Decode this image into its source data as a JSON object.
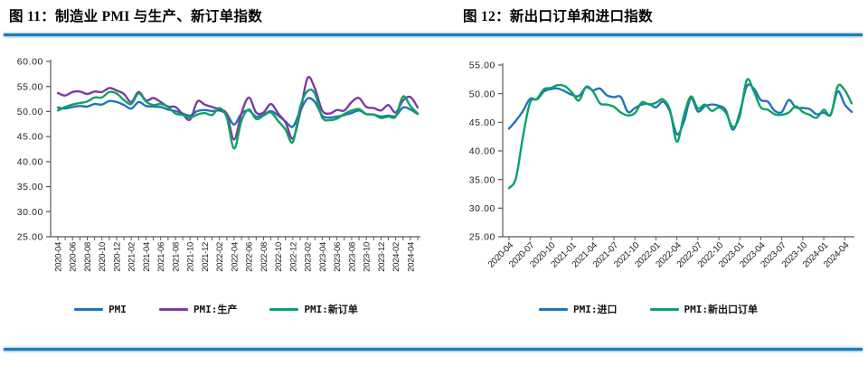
{
  "page": {
    "background": "#ffffff",
    "rule_color": "#1a7dc2"
  },
  "figures": [
    {
      "title": "图 11：制造业 PMI 与生产、新订单指数"
    },
    {
      "title": "图 12：新出口订单和进口指数"
    }
  ],
  "chart_data": [
    {
      "type": "line",
      "title": "图 11：制造业 PMI 与生产、新订单指数",
      "x": [
        "2020-04",
        "2020-05",
        "2020-06",
        "2020-07",
        "2020-08",
        "2020-09",
        "2020-10",
        "2020-11",
        "2020-12",
        "2021-01",
        "2021-02",
        "2021-03",
        "2021-04",
        "2021-05",
        "2021-06",
        "2021-07",
        "2021-08",
        "2021-09",
        "2021-10",
        "2021-11",
        "2021-12",
        "2022-01",
        "2022-02",
        "2022-03",
        "2022-04",
        "2022-05",
        "2022-06",
        "2022-07",
        "2022-08",
        "2022-09",
        "2022-10",
        "2022-11",
        "2022-12",
        "2023-01",
        "2023-02",
        "2023-03",
        "2023-04",
        "2023-05",
        "2023-06",
        "2023-07",
        "2023-08",
        "2023-09",
        "2023-10",
        "2023-11",
        "2023-12",
        "2024-01",
        "2024-02",
        "2024-03",
        "2024-04",
        "2024-05"
      ],
      "series": [
        {
          "name": "PMI",
          "color": "#2274b9",
          "values": [
            50.8,
            50.6,
            50.9,
            51.1,
            51.0,
            51.5,
            51.4,
            52.1,
            51.9,
            51.3,
            50.6,
            51.9,
            51.1,
            51.0,
            50.9,
            50.4,
            50.1,
            49.6,
            49.2,
            50.1,
            50.3,
            50.1,
            50.2,
            49.5,
            47.4,
            49.6,
            50.2,
            49.0,
            49.4,
            50.1,
            49.2,
            48.0,
            47.0,
            50.1,
            52.6,
            51.9,
            49.2,
            48.8,
            49.0,
            49.3,
            49.7,
            50.2,
            49.5,
            49.4,
            49.0,
            49.2,
            49.1,
            50.8,
            50.4,
            49.5
          ]
        },
        {
          "name": "PMI:生产",
          "color": "#7c3ba3",
          "values": [
            53.7,
            53.2,
            53.9,
            54.0,
            53.5,
            54.0,
            53.9,
            54.7,
            54.2,
            53.5,
            51.9,
            53.9,
            52.2,
            52.7,
            51.9,
            51.0,
            50.9,
            49.5,
            48.4,
            52.0,
            51.4,
            50.9,
            50.4,
            49.5,
            44.4,
            49.7,
            52.8,
            49.8,
            49.8,
            51.5,
            49.6,
            47.8,
            44.6,
            49.8,
            56.7,
            54.6,
            50.2,
            49.6,
            50.3,
            50.2,
            51.9,
            52.7,
            50.9,
            50.7,
            50.2,
            51.3,
            49.8,
            52.2,
            52.9,
            50.8
          ]
        },
        {
          "name": "PMI:新订单",
          "color": "#0ba364",
          "values": [
            50.2,
            50.9,
            51.4,
            51.7,
            52.0,
            52.8,
            52.8,
            53.9,
            53.6,
            52.3,
            51.5,
            53.6,
            52.0,
            51.3,
            51.5,
            50.9,
            49.6,
            49.3,
            48.8,
            49.4,
            49.7,
            49.3,
            50.7,
            48.8,
            42.6,
            48.2,
            50.4,
            48.5,
            49.2,
            49.8,
            48.1,
            46.4,
            43.9,
            50.9,
            54.1,
            53.6,
            48.8,
            48.3,
            48.6,
            49.5,
            50.2,
            50.5,
            49.5,
            49.4,
            48.7,
            49.0,
            49.0,
            53.0,
            51.1,
            49.6
          ]
        }
      ],
      "ylim": [
        25,
        60
      ],
      "ytick_labels": [
        "25.00",
        "30.00",
        "35.00",
        "40.00",
        "45.00",
        "50.00",
        "55.00",
        "60.00"
      ],
      "xtick_label_every": 2,
      "xtick_rotation": -90,
      "grid": false,
      "legend_position": "bottom"
    },
    {
      "type": "line",
      "title": "图 12：新出口订单和进口指数",
      "x": [
        "2020-04",
        "2020-05",
        "2020-06",
        "2020-07",
        "2020-08",
        "2020-09",
        "2020-10",
        "2020-11",
        "2020-12",
        "2021-01",
        "2021-02",
        "2021-03",
        "2021-04",
        "2021-05",
        "2021-06",
        "2021-07",
        "2021-08",
        "2021-09",
        "2021-10",
        "2021-11",
        "2021-12",
        "2022-01",
        "2022-02",
        "2022-03",
        "2022-04",
        "2022-05",
        "2022-06",
        "2022-07",
        "2022-08",
        "2022-09",
        "2022-10",
        "2022-11",
        "2022-12",
        "2023-01",
        "2023-02",
        "2023-03",
        "2023-04",
        "2023-05",
        "2023-06",
        "2023-07",
        "2023-08",
        "2023-09",
        "2023-10",
        "2023-11",
        "2023-12",
        "2024-01",
        "2024-02",
        "2024-03",
        "2024-04",
        "2024-05"
      ],
      "series": [
        {
          "name": "PMI:进口",
          "color": "#2274b9",
          "values": [
            43.9,
            45.3,
            47.0,
            49.1,
            49.0,
            50.4,
            50.8,
            50.9,
            50.4,
            49.8,
            49.6,
            51.1,
            50.6,
            50.9,
            49.7,
            49.4,
            49.4,
            46.8,
            47.5,
            48.1,
            48.2,
            47.6,
            48.6,
            46.9,
            42.9,
            45.1,
            49.2,
            46.9,
            47.8,
            48.1,
            47.9,
            47.1,
            43.7,
            46.7,
            51.3,
            50.9,
            48.9,
            48.6,
            47.0,
            46.8,
            48.9,
            47.6,
            47.5,
            47.3,
            46.4,
            46.7,
            46.4,
            50.4,
            48.1,
            46.8
          ]
        },
        {
          "name": "PMI:新出口订单",
          "color": "#0ba364",
          "values": [
            33.5,
            35.3,
            42.6,
            48.4,
            49.1,
            50.8,
            51.0,
            51.5,
            51.3,
            50.2,
            48.8,
            51.2,
            50.4,
            48.3,
            48.1,
            47.7,
            46.7,
            46.2,
            46.6,
            48.5,
            48.1,
            48.4,
            49.0,
            47.2,
            41.6,
            46.2,
            49.5,
            47.4,
            48.1,
            47.0,
            47.6,
            46.7,
            44.2,
            46.1,
            52.4,
            50.4,
            47.6,
            47.2,
            46.4,
            46.3,
            46.7,
            47.8,
            46.8,
            46.3,
            45.8,
            47.2,
            46.3,
            51.3,
            50.6,
            48.3
          ]
        }
      ],
      "ylim": [
        25,
        55
      ],
      "ytick_labels": [
        "25.00",
        "30.00",
        "35.00",
        "40.00",
        "45.00",
        "50.00",
        "55.00"
      ],
      "xtick_label_every": 3,
      "xtick_rotation": -45,
      "grid": false,
      "legend_position": "bottom"
    }
  ]
}
